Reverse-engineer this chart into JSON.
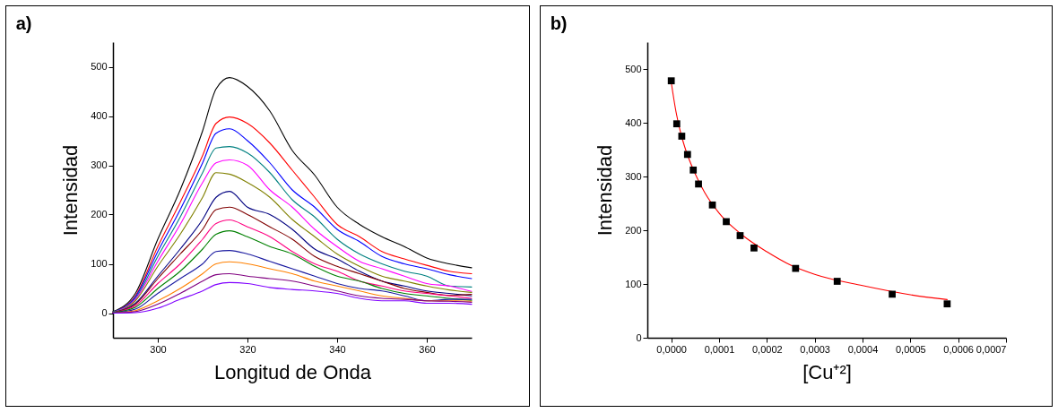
{
  "chart_data": [
    {
      "type": "line",
      "title": "a)",
      "xlabel": "Longitud de Onda",
      "ylabel": "Intensidad",
      "x": [
        290,
        295,
        300,
        305,
        310,
        313,
        316,
        320,
        325,
        330,
        335,
        340,
        345,
        350,
        355,
        360,
        365,
        370
      ],
      "xlim": [
        290,
        370
      ],
      "xticks": [
        300,
        320,
        340,
        360
      ],
      "ylim": [
        -50,
        550
      ],
      "yticks": [
        0,
        100,
        200,
        300,
        400,
        500
      ],
      "grid": false,
      "legend": false,
      "marker": "none",
      "series": [
        {
          "color": "#000000",
          "values": [
            3,
            40,
            150,
            250,
            370,
            455,
            478,
            460,
            410,
            330,
            280,
            215,
            180,
            155,
            135,
            112,
            100,
            92
          ]
        },
        {
          "color": "#ff0000",
          "values": [
            2,
            35,
            135,
            225,
            320,
            385,
            398,
            385,
            345,
            290,
            235,
            180,
            155,
            125,
            110,
            97,
            85,
            80
          ]
        },
        {
          "color": "#0000ff",
          "values": [
            2,
            33,
            125,
            210,
            305,
            365,
            374,
            350,
            305,
            250,
            215,
            170,
            145,
            115,
            100,
            90,
            78,
            70
          ]
        },
        {
          "color": "#008080",
          "values": [
            2,
            30,
            115,
            195,
            285,
            335,
            338,
            325,
            285,
            230,
            195,
            150,
            120,
            100,
            85,
            75,
            55,
            53
          ]
        },
        {
          "color": "#ff00ff",
          "values": [
            1,
            28,
            105,
            180,
            265,
            305,
            311,
            300,
            250,
            215,
            170,
            135,
            105,
            90,
            75,
            60,
            55,
            44
          ]
        },
        {
          "color": "#808000",
          "values": [
            1,
            25,
            95,
            160,
            235,
            285,
            282,
            265,
            235,
            190,
            155,
            120,
            95,
            75,
            65,
            55,
            47,
            42
          ]
        },
        {
          "color": "#000080",
          "values": [
            1,
            20,
            75,
            130,
            190,
            235,
            247,
            215,
            200,
            170,
            130,
            110,
            85,
            65,
            55,
            45,
            40,
            35
          ]
        },
        {
          "color": "#800000",
          "values": [
            1,
            18,
            70,
            120,
            170,
            210,
            215,
            200,
            175,
            150,
            115,
            95,
            80,
            65,
            50,
            42,
            36,
            38
          ]
        },
        {
          "color": "#ff0080",
          "values": [
            1,
            15,
            60,
            100,
            150,
            182,
            189,
            175,
            155,
            125,
            100,
            85,
            65,
            55,
            45,
            40,
            35,
            30
          ]
        },
        {
          "color": "#008000",
          "values": [
            1,
            12,
            50,
            85,
            130,
            160,
            167,
            155,
            135,
            120,
            95,
            75,
            65,
            50,
            40,
            35,
            30,
            26
          ]
        },
        {
          "color": "#1a1aa0",
          "values": [
            0,
            8,
            40,
            70,
            100,
            125,
            127,
            120,
            105,
            90,
            75,
            60,
            50,
            45,
            35,
            25,
            28,
            28
          ]
        },
        {
          "color": "#ff8000",
          "values": [
            0,
            5,
            25,
            50,
            80,
            100,
            104,
            100,
            90,
            80,
            65,
            55,
            45,
            35,
            30,
            25,
            25,
            24
          ]
        },
        {
          "color": "#800080",
          "values": [
            0,
            3,
            18,
            40,
            65,
            78,
            80,
            75,
            70,
            65,
            55,
            45,
            35,
            30,
            28,
            25,
            24,
            22
          ]
        },
        {
          "color": "#8000ff",
          "values": [
            0,
            1,
            10,
            28,
            45,
            58,
            62,
            60,
            52,
            48,
            45,
            40,
            30,
            25,
            25,
            20,
            20,
            18
          ]
        }
      ]
    },
    {
      "type": "scatter",
      "title": "b)",
      "xlabel": "[Cu⁺²]",
      "ylabel": "Intensidad",
      "xlim": [
        -5e-05,
        0.0007
      ],
      "xticks": [
        {
          "value": 0,
          "label": "0,0000"
        },
        {
          "value": 0.0001,
          "label": "0,0001"
        },
        {
          "value": 0.0002,
          "label": "0,0002"
        },
        {
          "value": 0.0003,
          "label": "0,0003"
        },
        {
          "value": 0.0004,
          "label": "0,0004"
        },
        {
          "value": 0.0005,
          "label": "0,0005"
        },
        {
          "value": 0.0006,
          "label": "0,0006"
        },
        {
          "value": 0.0007,
          "label": "0,0007"
        }
      ],
      "ylim": [
        0,
        550
      ],
      "yticks": [
        0,
        100,
        200,
        300,
        400,
        500
      ],
      "grid": false,
      "legend": false,
      "series": [
        {
          "type": "line",
          "color": "#ff0000",
          "marker": "none",
          "x": [
            0,
            1e-05,
            2e-05,
            3e-05,
            5e-05,
            7e-05,
            0.0001,
            0.00015,
            0.0002,
            0.00025,
            0.0003,
            0.0004,
            0.0005,
            0.000577
          ],
          "values": [
            475,
            420,
            380,
            350,
            305,
            270,
            232,
            190,
            160,
            135,
            118,
            97,
            80,
            71
          ]
        },
        {
          "type": "scatter",
          "color": "#000000",
          "marker": "square",
          "x": [
            0,
            1.15e-05,
            2.2e-05,
            3.4e-05,
            4.6e-05,
            5.7e-05,
            8.6e-05,
            0.000115,
            0.000144,
            0.000173,
            0.00026,
            0.000347,
            0.000462,
            0.000577
          ],
          "values": [
            478,
            398,
            375,
            341,
            312,
            286,
            247,
            216,
            190,
            167,
            129,
            105,
            81,
            63
          ]
        }
      ]
    }
  ]
}
